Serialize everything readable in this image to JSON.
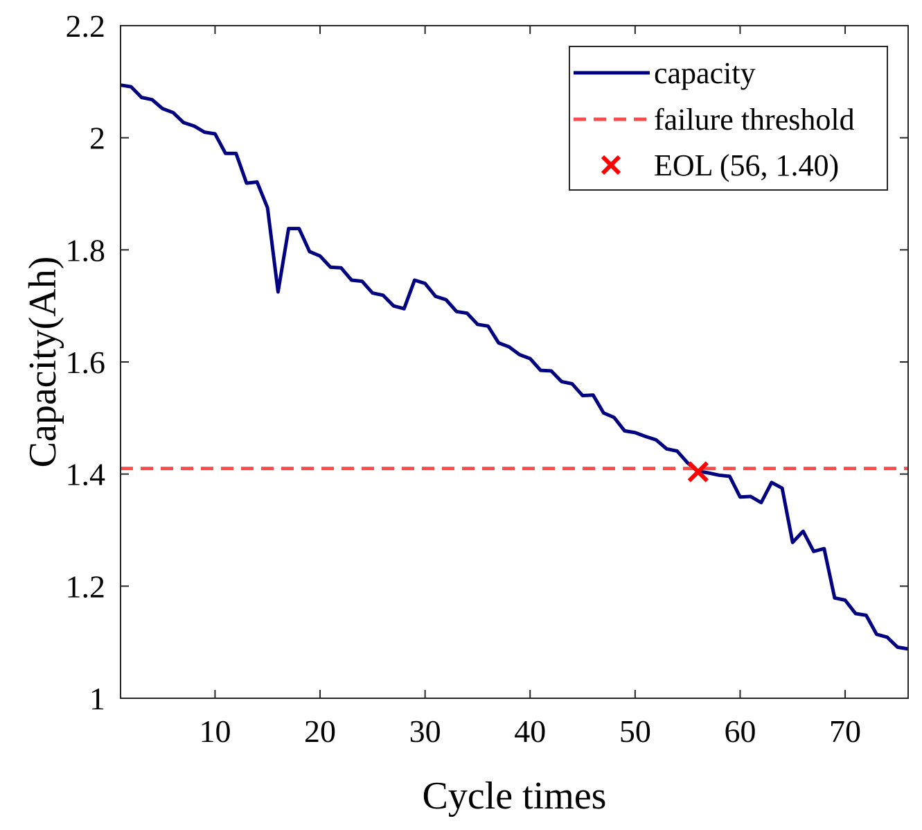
{
  "chart_data": {
    "type": "line",
    "title": "",
    "xlabel": "Cycle times",
    "ylabel": "Capacity(Ah)",
    "xlim": [
      1,
      76
    ],
    "ylim": [
      1,
      2.2
    ],
    "xticks": [
      10,
      20,
      30,
      40,
      50,
      60,
      70
    ],
    "yticks": [
      1,
      1.2,
      1.4,
      1.6,
      1.8,
      2,
      2.2
    ],
    "xtick_labels": [
      "10",
      "20",
      "30",
      "40",
      "50",
      "60",
      "70"
    ],
    "ytick_labels": [
      "1",
      "1.2",
      "1.4",
      "1.6",
      "1.8",
      "2",
      "2.2"
    ],
    "grid": false,
    "legend_position": "top-right",
    "series": [
      {
        "name": "capacity",
        "style": "solid",
        "color": "#000080",
        "x": [
          1,
          2,
          3,
          4,
          5,
          6,
          7,
          8,
          9,
          10,
          11,
          12,
          13,
          14,
          15,
          16,
          17,
          18,
          19,
          20,
          21,
          22,
          23,
          24,
          25,
          26,
          27,
          28,
          29,
          30,
          31,
          32,
          33,
          34,
          35,
          36,
          37,
          38,
          39,
          40,
          41,
          42,
          43,
          44,
          45,
          46,
          47,
          48,
          49,
          50,
          51,
          52,
          53,
          54,
          55,
          56,
          57,
          58,
          59,
          60,
          61,
          62,
          63,
          64,
          65,
          66,
          67,
          68,
          69,
          70,
          71,
          72,
          73,
          74,
          75,
          76
        ],
        "values": [
          2.094,
          2.091,
          2.072,
          2.068,
          2.052,
          2.045,
          2.027,
          2.021,
          2.01,
          2.007,
          1.972,
          1.972,
          1.919,
          1.921,
          1.875,
          1.725,
          1.838,
          1.838,
          1.797,
          1.789,
          1.769,
          1.768,
          1.746,
          1.744,
          1.723,
          1.719,
          1.7,
          1.695,
          1.746,
          1.74,
          1.717,
          1.711,
          1.69,
          1.687,
          1.667,
          1.664,
          1.634,
          1.627,
          1.613,
          1.606,
          1.585,
          1.584,
          1.565,
          1.561,
          1.54,
          1.541,
          1.509,
          1.501,
          1.477,
          1.474,
          1.467,
          1.461,
          1.445,
          1.441,
          1.42,
          1.405,
          1.402,
          1.398,
          1.396,
          1.359,
          1.36,
          1.349,
          1.385,
          1.375,
          1.278,
          1.298,
          1.262,
          1.267,
          1.179,
          1.175,
          1.151,
          1.148,
          1.114,
          1.109,
          1.091,
          1.088
        ]
      },
      {
        "name": "failure threshold",
        "style": "dashed",
        "color": "#ff4b4b",
        "x": [
          1,
          76
        ],
        "values": [
          1.41,
          1.41
        ]
      }
    ],
    "markers": [
      {
        "name": "EOL (56, 1.40)",
        "marker": "x",
        "color": "#ff0000",
        "x": 56,
        "y": 1.404
      }
    ],
    "legend": [
      "capacity",
      "failure threshold",
      "EOL (56, 1.40)"
    ]
  }
}
